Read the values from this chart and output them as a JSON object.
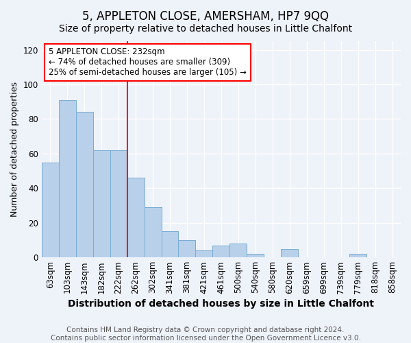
{
  "title": "5, APPLETON CLOSE, AMERSHAM, HP7 9QQ",
  "subtitle": "Size of property relative to detached houses in Little Chalfont",
  "xlabel": "Distribution of detached houses by size in Little Chalfont",
  "ylabel": "Number of detached properties",
  "footer_line1": "Contains HM Land Registry data © Crown copyright and database right 2024.",
  "footer_line2": "Contains public sector information licensed under the Open Government Licence v3.0.",
  "categories": [
    "63sqm",
    "103sqm",
    "143sqm",
    "182sqm",
    "222sqm",
    "262sqm",
    "302sqm",
    "341sqm",
    "381sqm",
    "421sqm",
    "461sqm",
    "500sqm",
    "540sqm",
    "580sqm",
    "620sqm",
    "659sqm",
    "699sqm",
    "739sqm",
    "779sqm",
    "818sqm",
    "858sqm"
  ],
  "values": [
    55,
    91,
    84,
    62,
    62,
    46,
    29,
    15,
    10,
    4,
    7,
    8,
    2,
    0,
    5,
    0,
    0,
    0,
    2,
    0,
    0
  ],
  "bar_color": "#b8d0ea",
  "bar_edge_color": "#7aadd4",
  "ylim": [
    0,
    125
  ],
  "yticks": [
    0,
    20,
    40,
    60,
    80,
    100,
    120
  ],
  "vline_x": 4.5,
  "annotation_text": "5 APPLETON CLOSE: 232sqm\n← 74% of detached houses are smaller (309)\n25% of semi-detached houses are larger (105) →",
  "annotation_box_color": "white",
  "annotation_box_edge_color": "red",
  "vline_color": "red",
  "background_color": "#eef2f9",
  "grid_color": "white",
  "title_fontsize": 12,
  "subtitle_fontsize": 10,
  "xlabel_fontsize": 10,
  "ylabel_fontsize": 9,
  "tick_fontsize": 8.5,
  "footer_fontsize": 7.5,
  "annot_fontsize": 8.5
}
